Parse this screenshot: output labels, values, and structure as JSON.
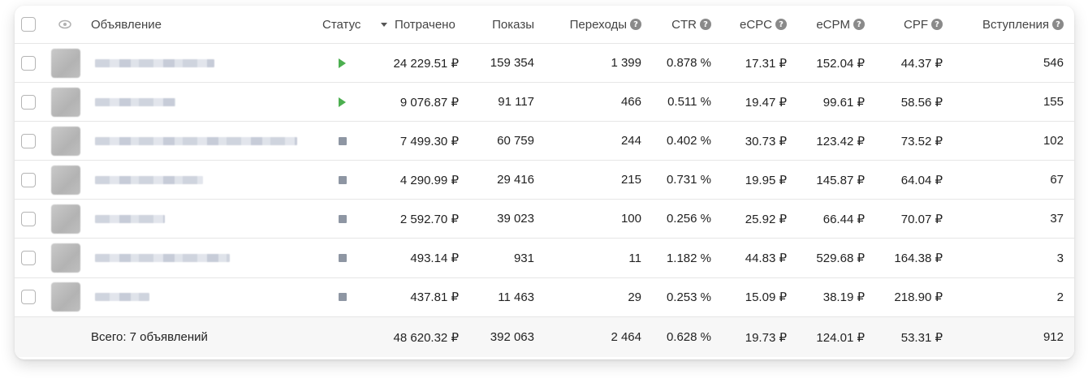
{
  "columns": {
    "ad": "Объявление",
    "status": "Статус",
    "spent": "Потрачено",
    "impressions": "Показы",
    "clicks": "Переходы",
    "ctr": "CTR",
    "ecpc": "eCPC",
    "ecpm": "eCPM",
    "cpf": "CPF",
    "joins": "Вступления",
    "help_glyph": "?"
  },
  "rows": [
    {
      "status": "active",
      "spent": "24 229.51 ₽",
      "impressions": "159 354",
      "clicks": "1 399",
      "ctr": "0.878 %",
      "ecpc": "17.31 ₽",
      "ecpm": "152.04 ₽",
      "cpf": "44.37 ₽",
      "joins": "546"
    },
    {
      "status": "active",
      "spent": "9 076.87 ₽",
      "impressions": "91 117",
      "clicks": "466",
      "ctr": "0.511 %",
      "ecpc": "19.47 ₽",
      "ecpm": "99.61 ₽",
      "cpf": "58.56 ₽",
      "joins": "155"
    },
    {
      "status": "stopped",
      "spent": "7 499.30 ₽",
      "impressions": "60 759",
      "clicks": "244",
      "ctr": "0.402 %",
      "ecpc": "30.73 ₽",
      "ecpm": "123.42 ₽",
      "cpf": "73.52 ₽",
      "joins": "102"
    },
    {
      "status": "stopped",
      "spent": "4 290.99 ₽",
      "impressions": "29 416",
      "clicks": "215",
      "ctr": "0.731 %",
      "ecpc": "19.95 ₽",
      "ecpm": "145.87 ₽",
      "cpf": "64.04 ₽",
      "joins": "67"
    },
    {
      "status": "stopped",
      "spent": "2 592.70 ₽",
      "impressions": "39 023",
      "clicks": "100",
      "ctr": "0.256 %",
      "ecpc": "25.92 ₽",
      "ecpm": "66.44 ₽",
      "cpf": "70.07 ₽",
      "joins": "37"
    },
    {
      "status": "stopped",
      "spent": "493.14 ₽",
      "impressions": "931",
      "clicks": "11",
      "ctr": "1.182 %",
      "ecpc": "44.83 ₽",
      "ecpm": "529.68 ₽",
      "cpf": "164.38 ₽",
      "joins": "3"
    },
    {
      "status": "stopped",
      "spent": "437.81 ₽",
      "impressions": "11 463",
      "clicks": "29",
      "ctr": "0.253 %",
      "ecpc": "15.09 ₽",
      "ecpm": "38.19 ₽",
      "cpf": "218.90 ₽",
      "joins": "2"
    }
  ],
  "total": {
    "label": "Всего: 7 объявлений",
    "spent": "48 620.32 ₽",
    "impressions": "392 063",
    "clicks": "2 464",
    "ctr": "0.628 %",
    "ecpc": "19.73 ₽",
    "ecpm": "124.01 ₽",
    "cpf": "53.31 ₽",
    "joins": "912"
  },
  "colors": {
    "active": "#4caf50",
    "stopped": "#8e96a3"
  },
  "icons": {
    "visibility": "eye-icon",
    "sort": "sort-desc-icon",
    "help": "help-circle-icon",
    "active": "play-icon",
    "stopped": "stop-icon"
  }
}
